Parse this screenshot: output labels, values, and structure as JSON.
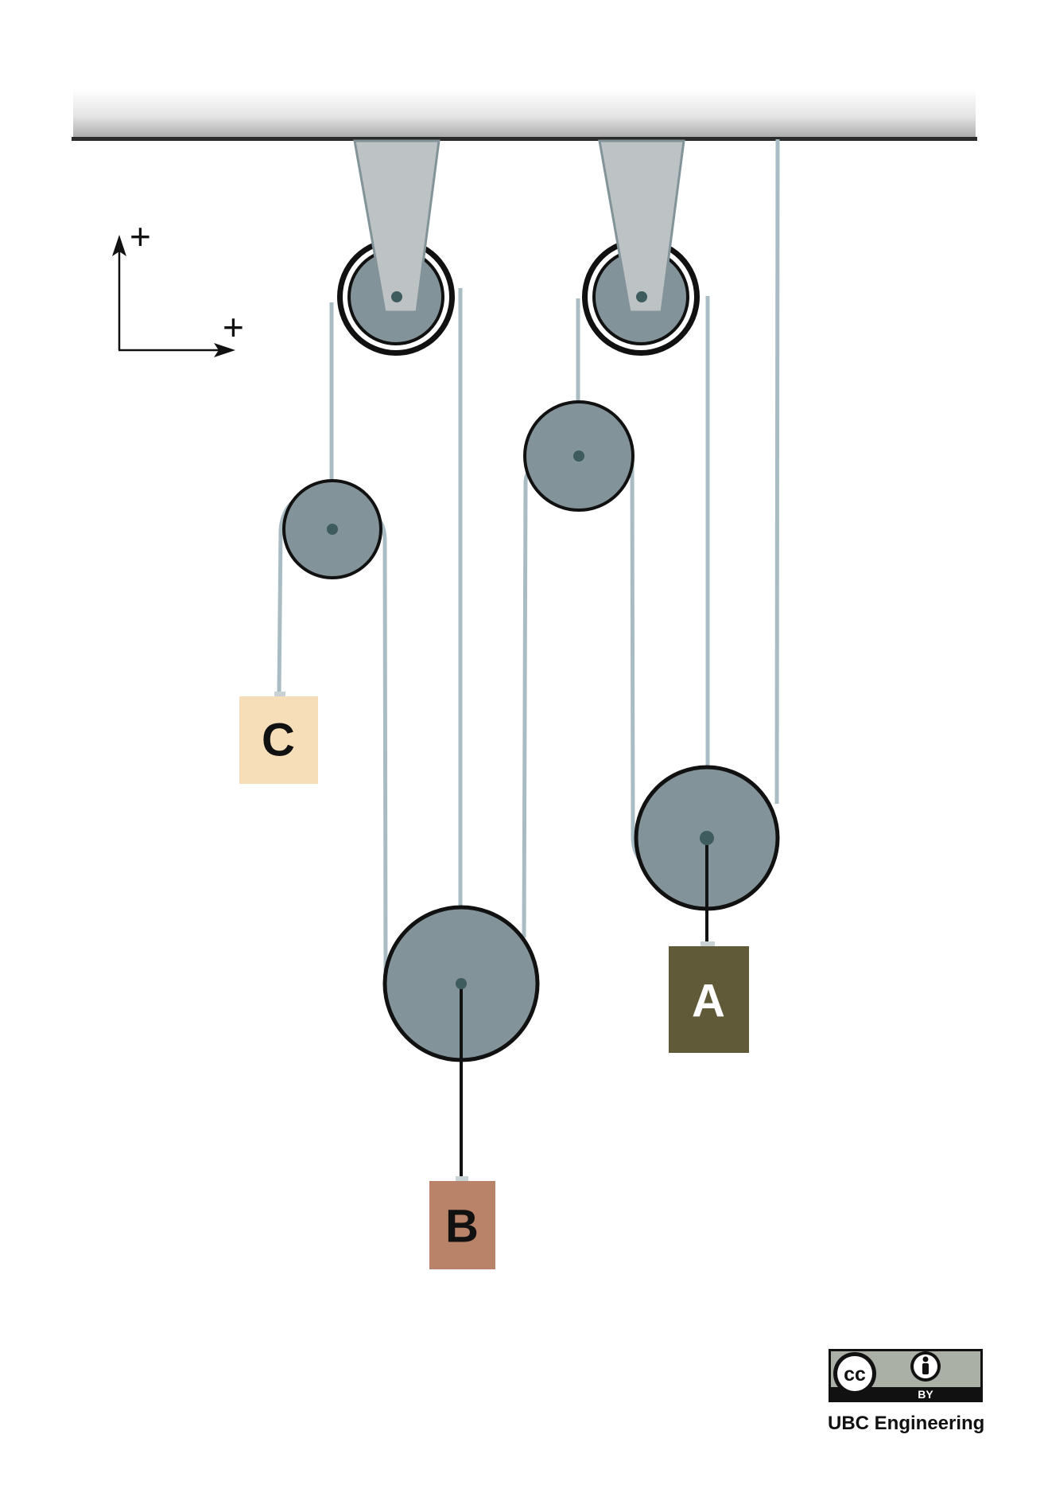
{
  "axes": {
    "y_sign": "+",
    "x_sign": "+"
  },
  "blocks": {
    "a": {
      "label": "A",
      "color": "#605A38",
      "text_color": "#FFFFFF"
    },
    "b": {
      "label": "B",
      "color": "#B9836A",
      "text_color": "#111111"
    },
    "c": {
      "label": "C",
      "color": "#F6DEB8",
      "text_color": "#111111"
    }
  },
  "colors": {
    "pulley_fill": "#83939A",
    "rope": "#A9BCC3",
    "bracket": "#BDC3C5",
    "ceiling_line": "#2B2B2B",
    "hub": "#3E5C5E"
  },
  "license": {
    "badge_cc": "cc",
    "badge_by": "BY",
    "credit": "UBC Engineering"
  }
}
